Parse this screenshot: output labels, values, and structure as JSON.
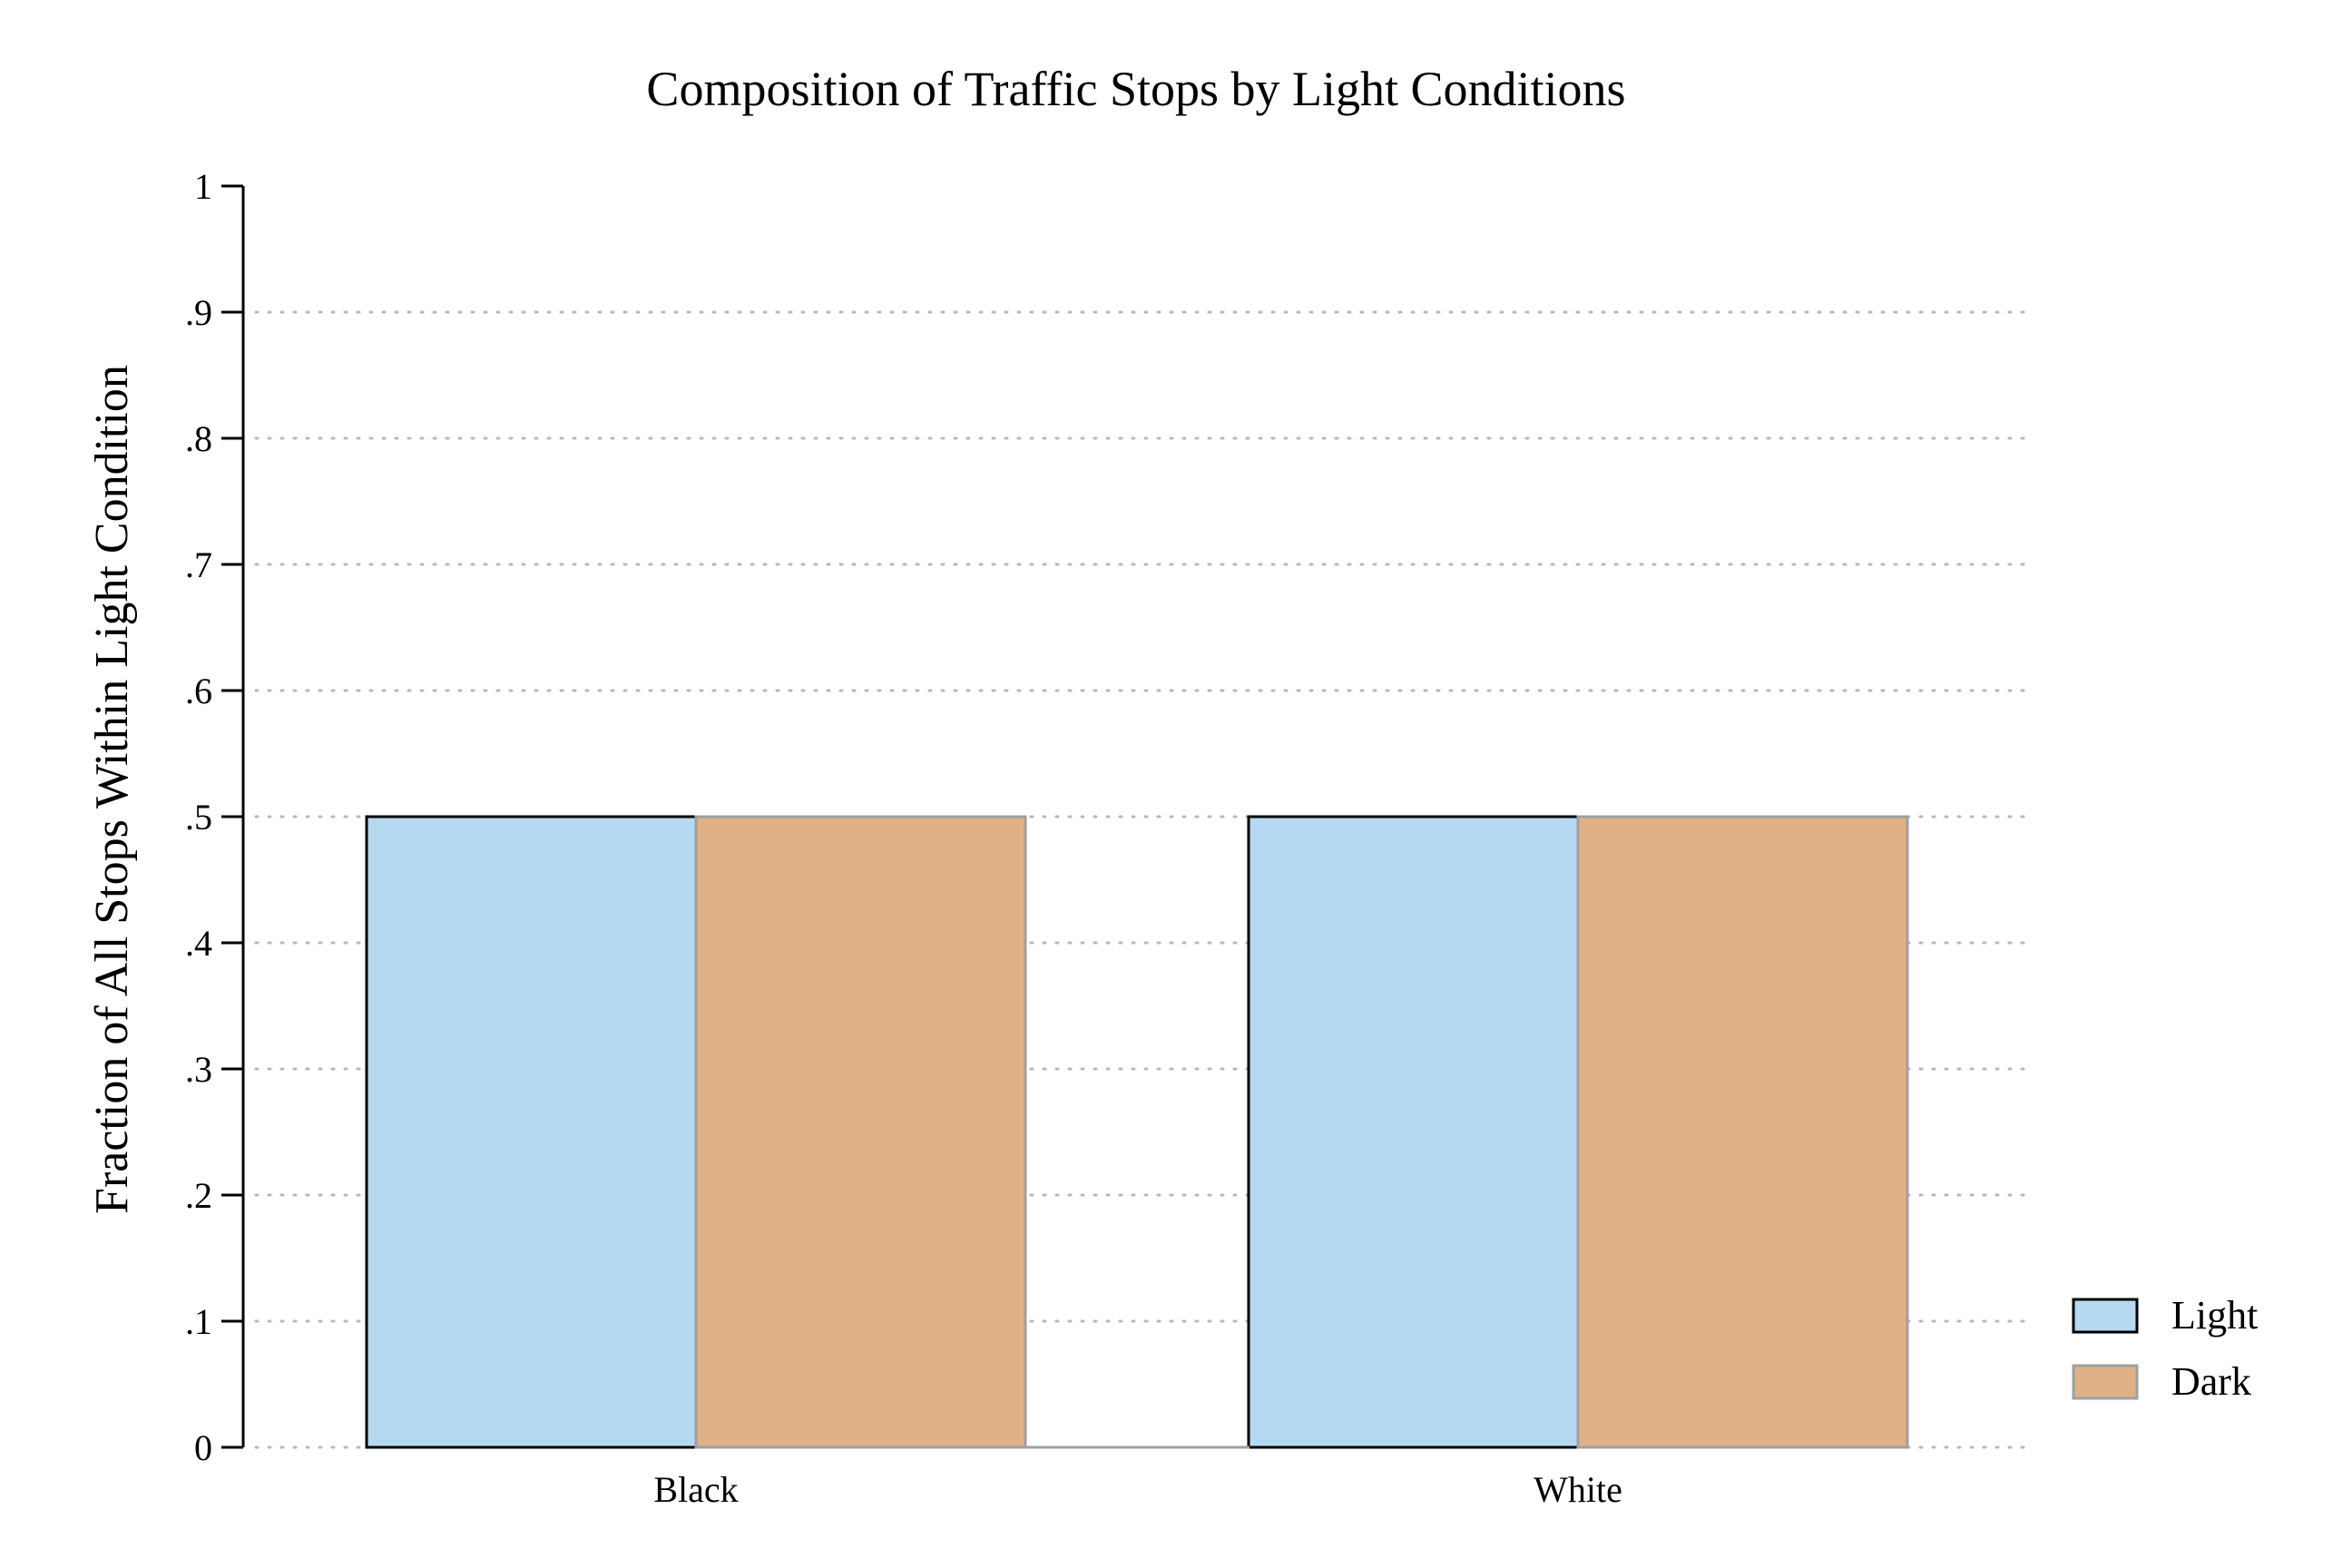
{
  "chart_data": {
    "type": "bar",
    "title": "Composition of Traffic Stops by Light Conditions",
    "xlabel": "",
    "ylabel": "Fraction of All Stops Within Light Condition",
    "categories": [
      "Black",
      "White"
    ],
    "series": [
      {
        "name": "Light",
        "values": [
          0.5,
          0.5
        ],
        "color": "#b5d9f0",
        "stroke": "#000000"
      },
      {
        "name": "Dark",
        "values": [
          0.5,
          0.5
        ],
        "color": "#dfb186",
        "stroke": "#a0a0a0"
      }
    ],
    "ylim": [
      0,
      1
    ],
    "yticks": [
      {
        "value": 0,
        "label": "0"
      },
      {
        "value": 0.1,
        "label": ".1"
      },
      {
        "value": 0.2,
        "label": ".2"
      },
      {
        "value": 0.3,
        "label": ".3"
      },
      {
        "value": 0.4,
        "label": ".4"
      },
      {
        "value": 0.5,
        "label": ".5"
      },
      {
        "value": 0.6,
        "label": ".6"
      },
      {
        "value": 0.7,
        "label": ".7"
      },
      {
        "value": 0.8,
        "label": ".8"
      },
      {
        "value": 0.9,
        "label": ".9"
      },
      {
        "value": 1,
        "label": "1"
      }
    ],
    "grid": true,
    "legend_position": "bottom-right"
  }
}
